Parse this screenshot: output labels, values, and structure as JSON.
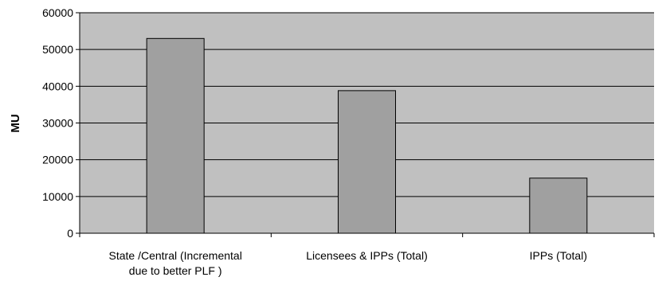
{
  "chart_data": {
    "type": "bar",
    "categories": [
      [
        "State /Central (Incremental",
        "due to better PLF )"
      ],
      [
        "Licensees & IPPs (Total)"
      ],
      [
        "IPPs (Total)"
      ]
    ],
    "values": [
      53000,
      38800,
      15000
    ],
    "ylabel": "MU",
    "xlabel": "",
    "ylim": [
      0,
      60000
    ],
    "yticks": [
      0,
      10000,
      20000,
      30000,
      40000,
      50000,
      60000
    ],
    "grid": true,
    "legend": "none",
    "colors": {
      "plot_background": "#c0c0c0",
      "bar_fill": "#a0a0a0",
      "bar_stroke": "#000000",
      "grid": "#000000",
      "axis": "#000000"
    }
  }
}
